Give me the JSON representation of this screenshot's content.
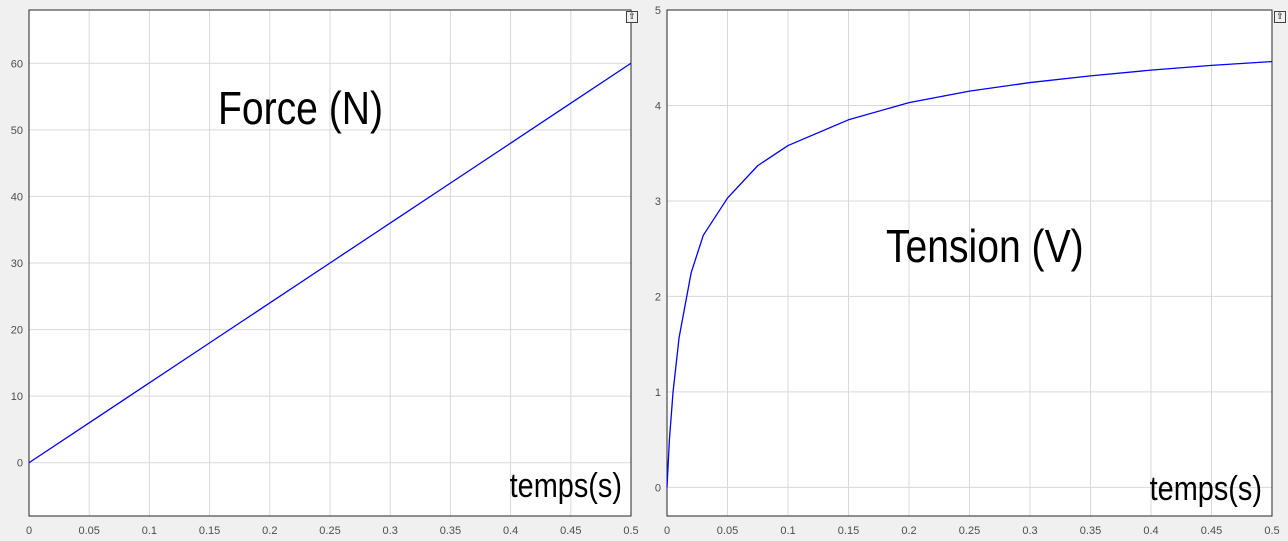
{
  "chart_data": [
    {
      "type": "line",
      "title": "Force (N)",
      "xlabel": "temps(s)",
      "ylabel": "",
      "xlim": [
        0,
        0.5
      ],
      "ylim": [
        -8,
        68
      ],
      "grid": true,
      "x_ticks": [
        "0",
        "0.05",
        "0.1",
        "0.15",
        "0.2",
        "0.25",
        "0.3",
        "0.35",
        "0.4",
        "0.45",
        "0.5"
      ],
      "y_ticks": [
        "0",
        "10",
        "20",
        "30",
        "40",
        "50",
        "60"
      ],
      "series": [
        {
          "color": "#0000ff",
          "x": [
            0,
            0.05,
            0.1,
            0.15,
            0.2,
            0.25,
            0.3,
            0.35,
            0.4,
            0.45,
            0.5
          ],
          "y": [
            0,
            6,
            12,
            18,
            24,
            30,
            36,
            42,
            48,
            54,
            60
          ]
        }
      ]
    },
    {
      "type": "line",
      "title": "Tension (V)",
      "xlabel": "temps(s)",
      "ylabel": "",
      "xlim": [
        0,
        0.5
      ],
      "ylim": [
        -0.3,
        5
      ],
      "grid": true,
      "x_ticks": [
        "0",
        "0.05",
        "0.1",
        "0.15",
        "0.2",
        "0.25",
        "0.3",
        "0.35",
        "0.4",
        "0.45",
        "0.5"
      ],
      "y_ticks": [
        "0",
        "1",
        "2",
        "3",
        "4",
        "5"
      ],
      "series": [
        {
          "color": "#0000ff",
          "x": [
            0,
            0.002,
            0.005,
            0.01,
            0.02,
            0.03,
            0.05,
            0.075,
            0.1,
            0.15,
            0.2,
            0.25,
            0.3,
            0.35,
            0.4,
            0.45,
            0.5
          ],
          "y": [
            0,
            0.5,
            1.0,
            1.57,
            2.25,
            2.64,
            3.03,
            3.37,
            3.58,
            3.85,
            4.03,
            4.15,
            4.24,
            4.31,
            4.37,
            4.42,
            4.46
          ]
        }
      ]
    }
  ],
  "ui": {
    "undock_icon": "undock-icon"
  }
}
